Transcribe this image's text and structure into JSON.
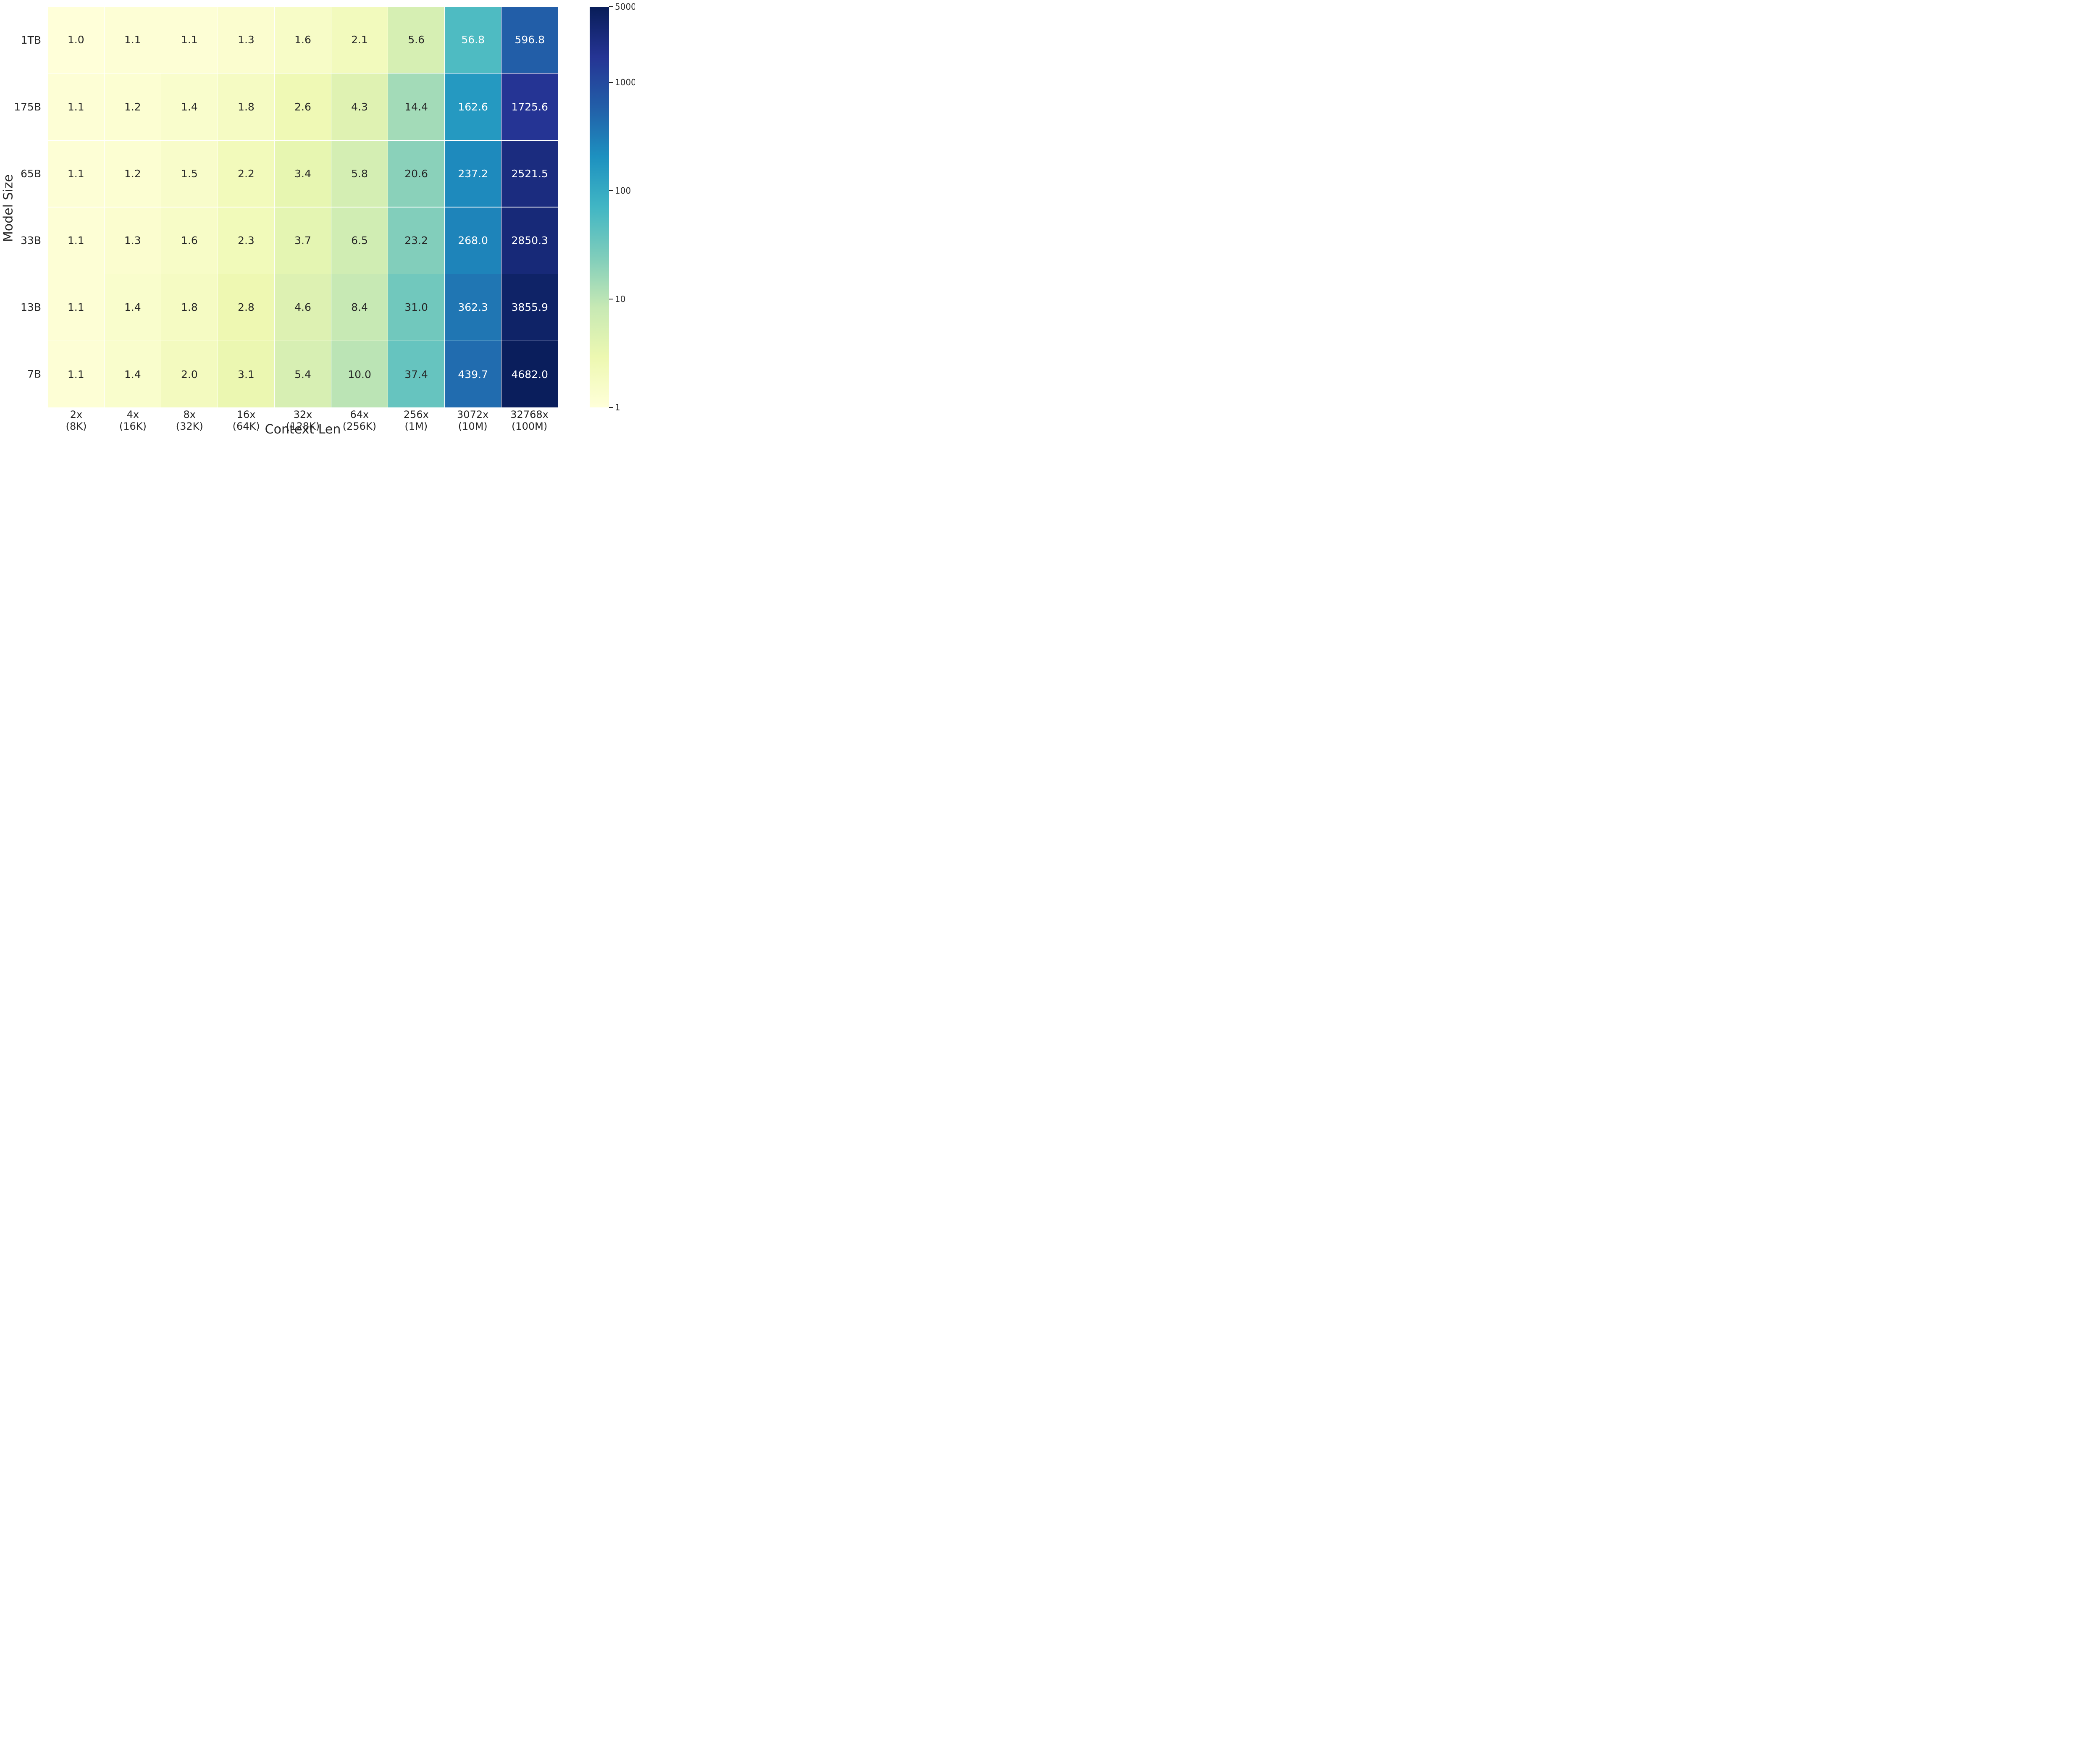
{
  "chart_data": {
    "type": "heatmap",
    "title": "",
    "xlabel": "Context Len",
    "ylabel": "Model Size",
    "x_tick_labels": [
      [
        "2x",
        "(8K)"
      ],
      [
        "4x",
        "(16K)"
      ],
      [
        "8x",
        "(32K)"
      ],
      [
        "16x",
        "(64K)"
      ],
      [
        "32x",
        "(128K)"
      ],
      [
        "64x",
        "(256K)"
      ],
      [
        "256x",
        "(1M)"
      ],
      [
        "3072x",
        "(10M)"
      ],
      [
        "32768x",
        "(100M)"
      ]
    ],
    "y_tick_labels": [
      "1TB",
      "175B",
      "65B",
      "33B",
      "13B",
      "7B"
    ],
    "rows": [
      {
        "label": "1TB",
        "values": [
          1.0,
          1.1,
          1.1,
          1.3,
          1.6,
          2.1,
          5.6,
          56.8,
          596.8
        ]
      },
      {
        "label": "175B",
        "values": [
          1.1,
          1.2,
          1.4,
          1.8,
          2.6,
          4.3,
          14.4,
          162.6,
          1725.6
        ]
      },
      {
        "label": "65B",
        "values": [
          1.1,
          1.2,
          1.5,
          2.2,
          3.4,
          5.8,
          20.6,
          237.2,
          2521.5
        ]
      },
      {
        "label": "33B",
        "values": [
          1.1,
          1.3,
          1.6,
          2.3,
          3.7,
          6.5,
          23.2,
          268.0,
          2850.3
        ]
      },
      {
        "label": "13B",
        "values": [
          1.1,
          1.4,
          1.8,
          2.8,
          4.6,
          8.4,
          31.0,
          362.3,
          3855.9
        ]
      },
      {
        "label": "7B",
        "values": [
          1.1,
          1.4,
          2.0,
          3.1,
          5.4,
          10.0,
          37.4,
          439.7,
          4682.0
        ]
      }
    ],
    "colorbar": {
      "scale": "log",
      "vmin": 1,
      "vmax": 5000,
      "tick_labels": [
        "5000",
        "1000",
        "100",
        "10",
        "1"
      ],
      "tick_values": [
        5000,
        1000,
        100,
        10,
        1
      ]
    },
    "colormap": {
      "name": "YlGnBu",
      "anchors": [
        "#ffffd9",
        "#edf8b1",
        "#c7e9b4",
        "#7fcdbb",
        "#41b6c4",
        "#1d91c0",
        "#225ea8",
        "#253494",
        "#081d58"
      ]
    },
    "annotation_colors": {
      "dark": "#262626",
      "light": "#ffffff"
    },
    "grid_line_color": "#ffffff",
    "legend_position": "right"
  }
}
